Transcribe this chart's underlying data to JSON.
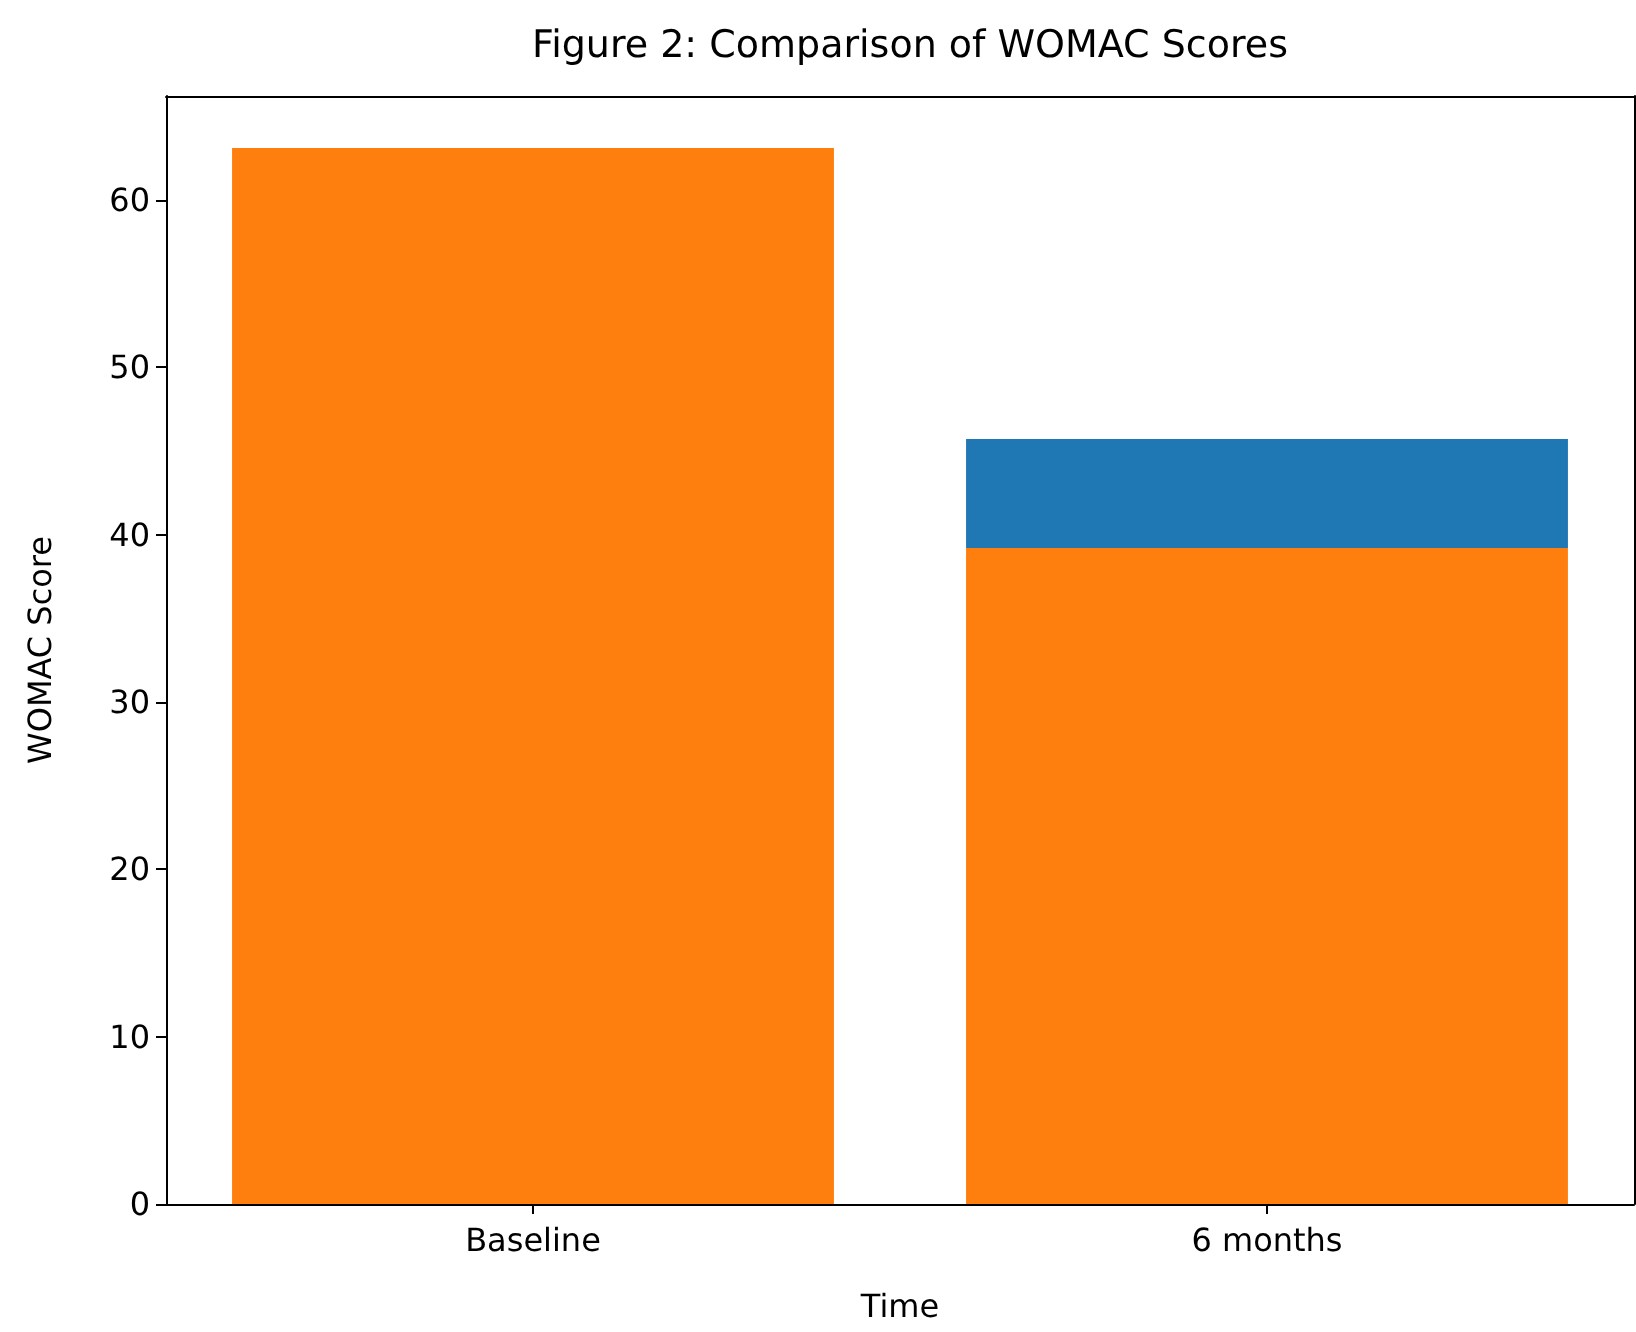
{
  "chart_data": {
    "type": "bar",
    "title": "Figure 2: Comparison of WOMAC Scores",
    "xlabel": "Time",
    "ylabel": "WOMAC Score",
    "categories": [
      "Baseline",
      "6 months"
    ],
    "stacked": true,
    "series": [
      {
        "color": "#ff7f0e",
        "values": [
          63.1,
          39.2
        ]
      },
      {
        "color": "#1f77b4",
        "values": [
          null,
          6.5
        ]
      }
    ],
    "ylim": [
      0,
      66.2
    ],
    "yticks": [
      0,
      10,
      20,
      30,
      40,
      50,
      60
    ],
    "grid": false
  }
}
